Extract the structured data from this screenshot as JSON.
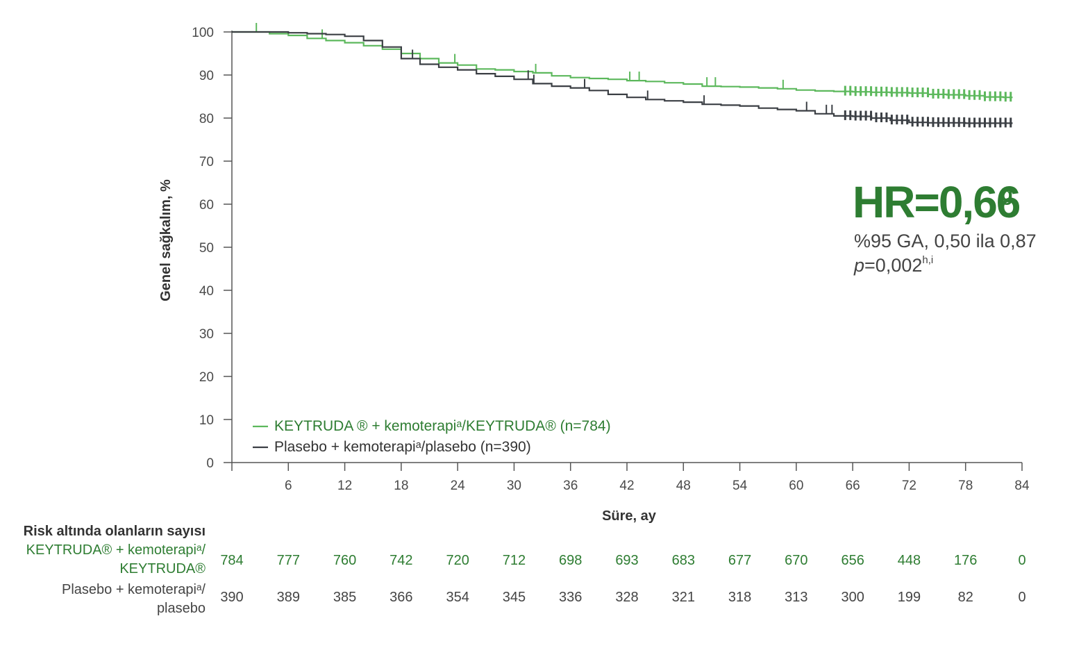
{
  "chart_data": {
    "type": "line",
    "title": "",
    "xlabel": "Süre, ay",
    "ylabel": "Genel sağkalım, %",
    "xlim": [
      0,
      84
    ],
    "ylim": [
      0,
      100
    ],
    "x_ticks": [
      6,
      12,
      18,
      24,
      30,
      36,
      42,
      48,
      54,
      60,
      66,
      72,
      78,
      84
    ],
    "y_ticks": [
      0,
      10,
      20,
      30,
      40,
      50,
      60,
      70,
      80,
      90,
      100
    ],
    "grid": false,
    "legend_position": "bottom-left",
    "series": [
      {
        "name": "KEYTRUDA ® + kemoterapiᵃ/KEYTRUDA® (n=784)",
        "color": "#5cb85c",
        "x": [
          0,
          2,
          4,
          6,
          8,
          10,
          12,
          14,
          16,
          18,
          20,
          22,
          24,
          26,
          28,
          30,
          32,
          34,
          36,
          38,
          40,
          42,
          44,
          46,
          48,
          50,
          52,
          54,
          56,
          58,
          60,
          62,
          64,
          66,
          68,
          70,
          72,
          74,
          76,
          78,
          80,
          82
        ],
        "y": [
          100,
          100,
          99.6,
          99.2,
          98.5,
          98,
          97.5,
          96.8,
          96,
          95,
          93.8,
          92.8,
          92.3,
          91.4,
          91.2,
          90.8,
          90.5,
          89.8,
          89.4,
          89.2,
          89,
          88.7,
          88.5,
          88.2,
          87.9,
          87.4,
          87.3,
          87.2,
          87,
          86.8,
          86.5,
          86.3,
          86.2,
          86.1,
          86,
          85.9,
          85.8,
          85.5,
          85.4,
          85.2,
          84.9,
          84.8
        ],
        "censor_x": [
          2.6,
          9.6,
          23.7,
          32.3,
          42.3,
          43.3,
          50.5,
          51.4,
          58.6
        ]
      },
      {
        "name": "Plasebo + kemoterapiᵃ/plasebo (n=390)",
        "color": "#3b3f44",
        "x": [
          0,
          2,
          4,
          6,
          8,
          10,
          12,
          14,
          16,
          18,
          20,
          22,
          24,
          26,
          28,
          30,
          32,
          34,
          36,
          38,
          40,
          42,
          44,
          46,
          48,
          50,
          52,
          54,
          56,
          58,
          60,
          62,
          64,
          66,
          68,
          70,
          72,
          74,
          76,
          78,
          80,
          82
        ],
        "y": [
          100,
          100,
          100,
          99.8,
          99.6,
          99.4,
          99,
          98,
          96.5,
          93.8,
          92.5,
          91.8,
          91.2,
          90.3,
          89.7,
          89,
          88,
          87.4,
          87,
          86.4,
          85.5,
          84.8,
          84.3,
          84,
          83.7,
          83.2,
          83,
          82.8,
          82.3,
          82,
          81.7,
          81,
          80.5,
          80.4,
          80,
          79.5,
          79,
          78.9,
          78.9,
          78.8,
          78.8,
          78.8
        ],
        "censor_x": [
          19.2,
          31.5,
          32.1,
          37.5,
          44.2,
          50.2,
          61.1,
          63.2,
          63.8
        ]
      }
    ],
    "annotations": {
      "hr_main": "HR=0,66",
      "hr_sup": "g",
      "ci": "%95 GA, 0,50 ila 0,87",
      "p_italic": "p",
      "p_value": "=0,002",
      "p_sup": "h,i"
    },
    "risk_table": {
      "title": "Risk altında olanların sayısı",
      "rows": [
        {
          "label_lines": [
            "KEYTRUDA® + kemoterapiᵃ/",
            "KEYTRUDA®"
          ],
          "color": "#2e7d32",
          "values": [
            "784",
            "777",
            "760",
            "742",
            "720",
            "712",
            "698",
            "693",
            "683",
            "677",
            "670",
            "656",
            "448",
            "176",
            "0"
          ]
        },
        {
          "label_lines": [
            "Plasebo + kemoterapiᵃ/",
            "plasebo"
          ],
          "color": "#444444",
          "values": [
            "390",
            "389",
            "385",
            "366",
            "354",
            "345",
            "336",
            "328",
            "321",
            "318",
            "313",
            "300",
            "199",
            "82",
            "0"
          ]
        }
      ]
    }
  }
}
